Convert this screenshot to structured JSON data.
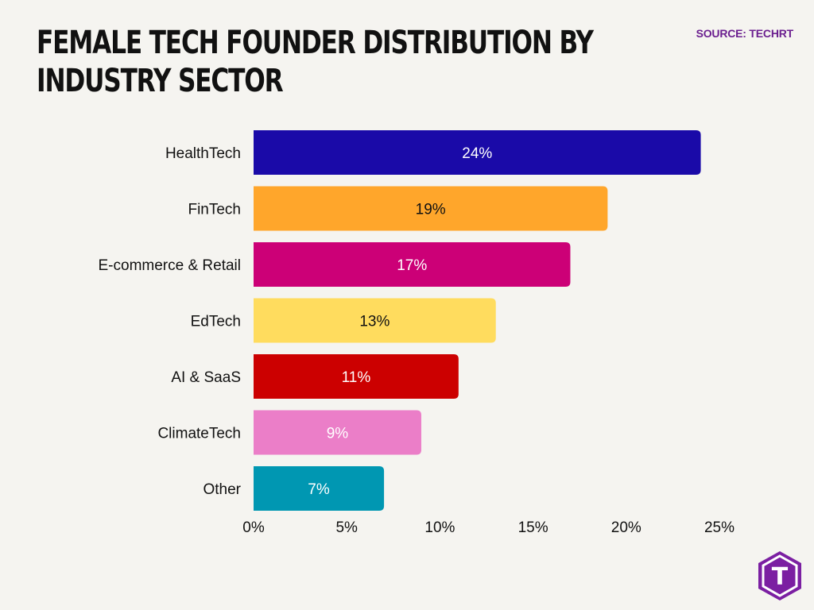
{
  "source": "SOURCE: TECHRT",
  "chart_data": {
    "type": "bar",
    "orientation": "horizontal",
    "title": "FEMALE TECH FOUNDER DISTRIBUTION BY INDUSTRY SECTOR",
    "categories": [
      "HealthTech",
      "FinTech",
      "E-commerce & Retail",
      "EdTech",
      "AI & SaaS",
      "ClimateTech",
      "Other"
    ],
    "values": [
      24,
      19,
      17,
      13,
      11,
      9,
      7
    ],
    "value_labels": [
      "24%",
      "19%",
      "17%",
      "13%",
      "11%",
      "9%",
      "7%"
    ],
    "colors": [
      "#1a0aa8",
      "#ffa62b",
      "#cc0077",
      "#ffdc5e",
      "#cc0000",
      "#eb7ec8",
      "#0097b2"
    ],
    "label_colors": [
      "#ffffff",
      "#111111",
      "#ffffff",
      "#111111",
      "#ffffff",
      "#ffffff",
      "#ffffff"
    ],
    "xlim": [
      0,
      25
    ],
    "x_ticks": [
      0,
      5,
      10,
      15,
      20,
      25
    ],
    "x_tick_labels": [
      "0%",
      "5%",
      "10%",
      "15%",
      "20%",
      "25%"
    ],
    "grid": false,
    "legend": "none"
  },
  "logo": {
    "icon": "t-hexagon-logo",
    "letter": "T",
    "color": "#7b1fa2"
  }
}
